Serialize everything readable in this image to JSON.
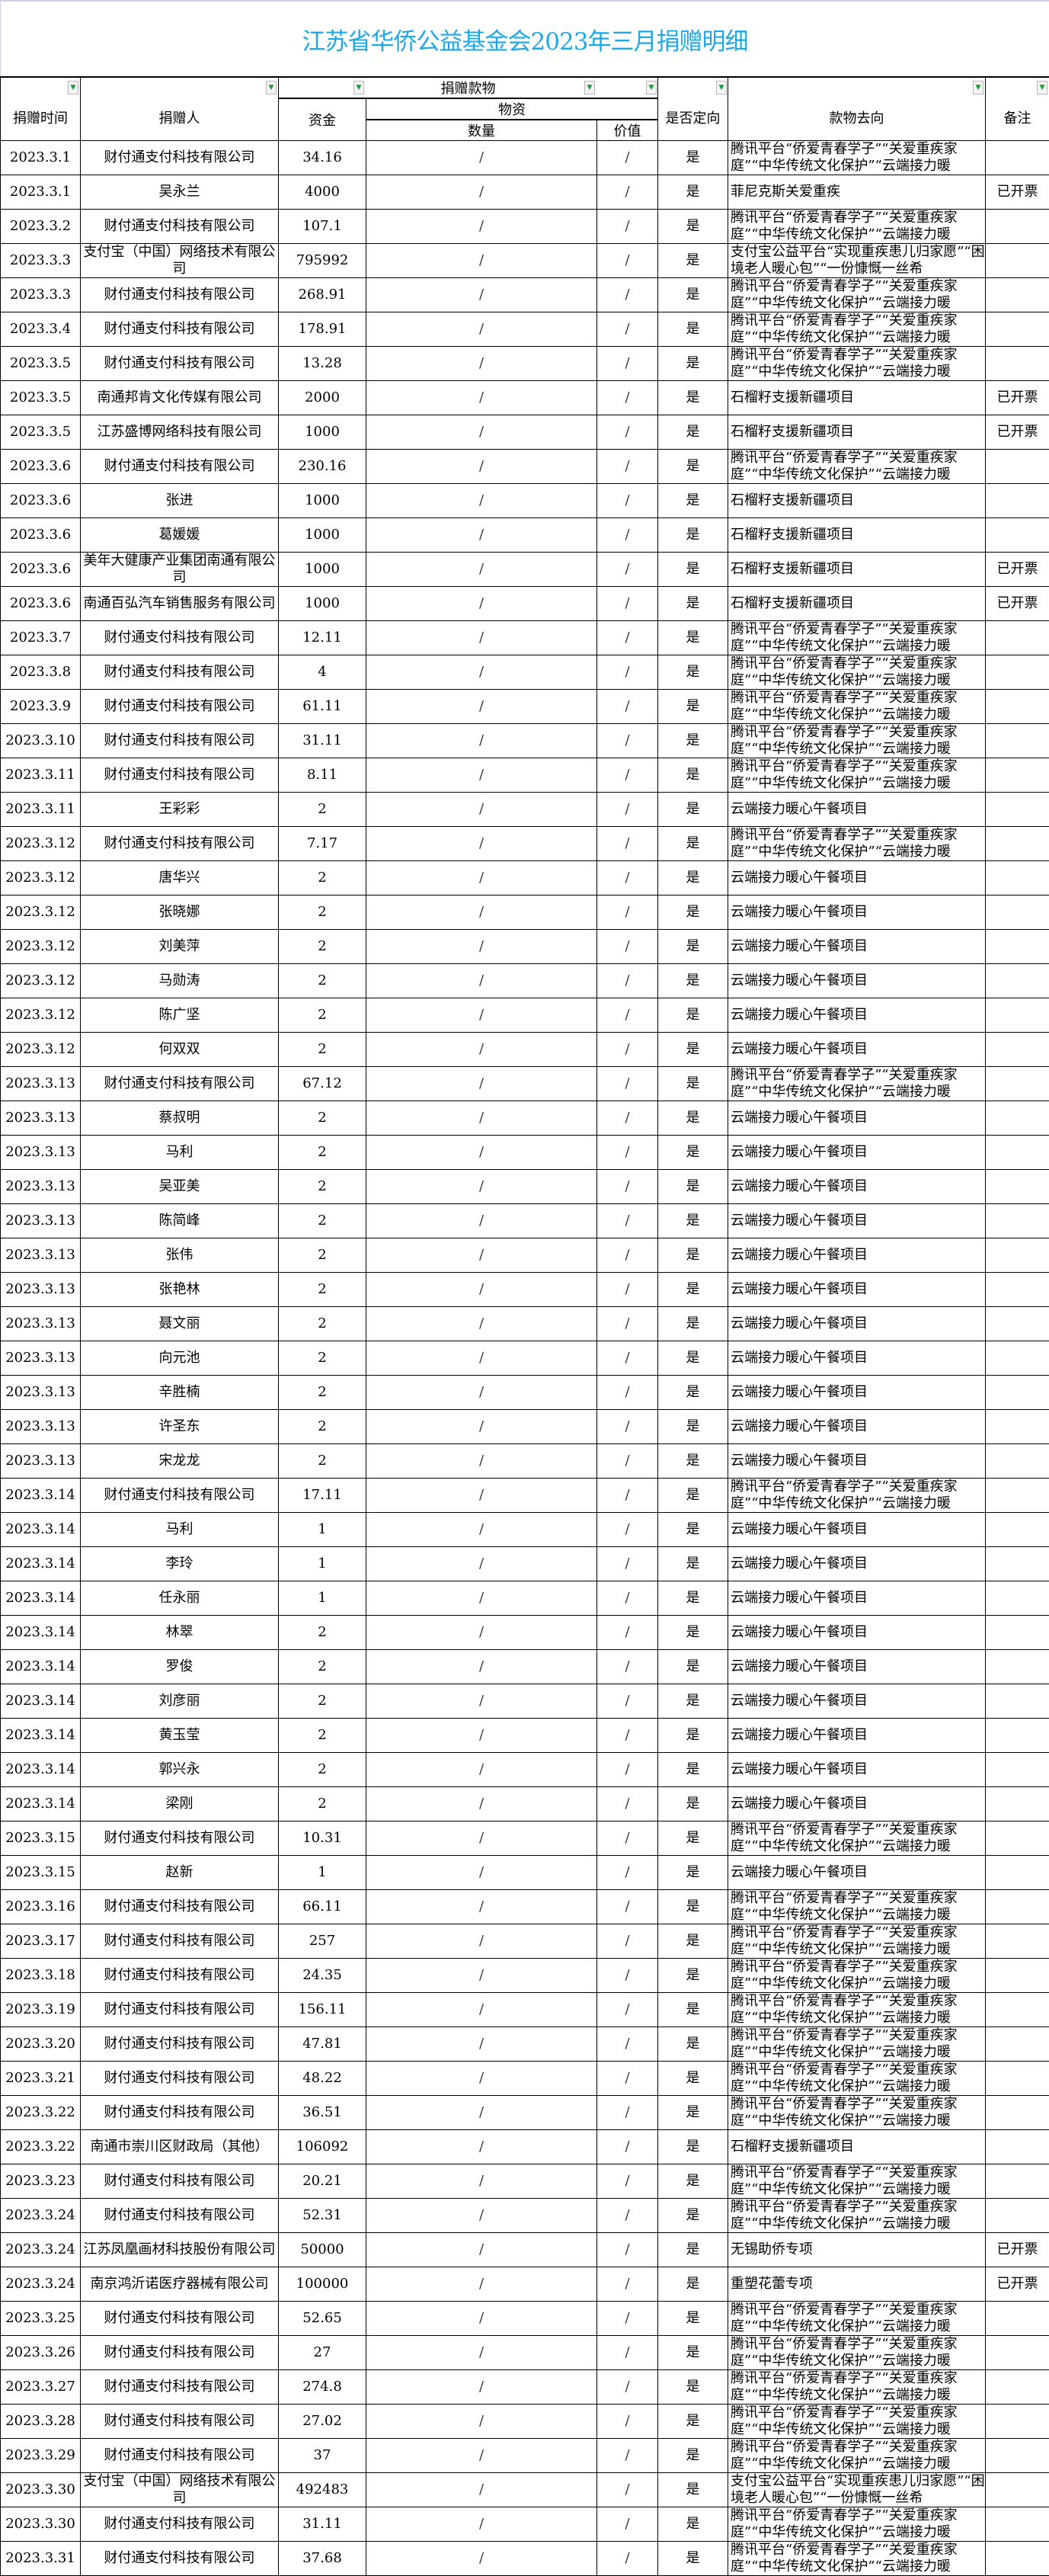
{
  "title": "江苏省华侨公益基金会2023年三月捐赠明细",
  "headers": {
    "date": "捐赠时间",
    "donor": "捐赠人",
    "donation_group": "捐赠款物",
    "funds": "资金",
    "goods": "物资",
    "quantity": "数量",
    "value": "价值",
    "directed": "是否定向",
    "destination": "款物去向",
    "note": "备注"
  },
  "filter_icon": "filter-dropdown-icon",
  "filter_color": "#1b9b3a",
  "title_color": "#1ea9e6",
  "rows": [
    [
      "2023.3.1",
      "财付通支付科技有限公司",
      "34.16",
      "/",
      "/",
      "是",
      "腾讯平台“侨爱青春学子”“关爱重疾家庭”“中华传统文化保护”“云端接力暖",
      ""
    ],
    [
      "2023.3.1",
      "吴永兰",
      "4000",
      "/",
      "/",
      "是",
      "菲尼克斯关爱重疾",
      "已开票"
    ],
    [
      "2023.3.2",
      "财付通支付科技有限公司",
      "107.1",
      "/",
      "/",
      "是",
      "腾讯平台“侨爱青春学子”“关爱重疾家庭”“中华传统文化保护”“云端接力暖",
      ""
    ],
    [
      "2023.3.3",
      "支付宝（中国）网络技术有限公司",
      "795992",
      "/",
      "/",
      "是",
      "支付宝公益平台“实现重疾患儿归家愿”“困境老人暖心包”“一份慷慨一丝希",
      ""
    ],
    [
      "2023.3.3",
      "财付通支付科技有限公司",
      "268.91",
      "/",
      "/",
      "是",
      "腾讯平台“侨爱青春学子”“关爱重疾家庭”“中华传统文化保护”“云端接力暖",
      ""
    ],
    [
      "2023.3.4",
      "财付通支付科技有限公司",
      "178.91",
      "/",
      "/",
      "是",
      "腾讯平台“侨爱青春学子”“关爱重疾家庭”“中华传统文化保护”“云端接力暖",
      ""
    ],
    [
      "2023.3.5",
      "财付通支付科技有限公司",
      "13.28",
      "/",
      "/",
      "是",
      "腾讯平台“侨爱青春学子”“关爱重疾家庭”“中华传统文化保护”“云端接力暖",
      ""
    ],
    [
      "2023.3.5",
      "南通邦肯文化传媒有限公司",
      "2000",
      "/",
      "/",
      "是",
      "石榴籽支援新疆项目",
      "已开票"
    ],
    [
      "2023.3.5",
      "江苏盛博网络科技有限公司",
      "1000",
      "/",
      "/",
      "是",
      "石榴籽支援新疆项目",
      "已开票"
    ],
    [
      "2023.3.6",
      "财付通支付科技有限公司",
      "230.16",
      "/",
      "/",
      "是",
      "腾讯平台“侨爱青春学子”“关爱重疾家庭”“中华传统文化保护”“云端接力暖",
      ""
    ],
    [
      "2023.3.6",
      "张进",
      "1000",
      "/",
      "/",
      "是",
      "石榴籽支援新疆项目",
      ""
    ],
    [
      "2023.3.6",
      "葛媛媛",
      "1000",
      "/",
      "/",
      "是",
      "石榴籽支援新疆项目",
      ""
    ],
    [
      "2023.3.6",
      "美年大健康产业集团南通有限公司",
      "1000",
      "/",
      "/",
      "是",
      "石榴籽支援新疆项目",
      "已开票"
    ],
    [
      "2023.3.6",
      "南通百弘汽车销售服务有限公司",
      "1000",
      "/",
      "/",
      "是",
      "石榴籽支援新疆项目",
      "已开票"
    ],
    [
      "2023.3.7",
      "财付通支付科技有限公司",
      "12.11",
      "/",
      "/",
      "是",
      "腾讯平台“侨爱青春学子”“关爱重疾家庭”“中华传统文化保护”“云端接力暖",
      ""
    ],
    [
      "2023.3.8",
      "财付通支付科技有限公司",
      "4",
      "/",
      "/",
      "是",
      "腾讯平台“侨爱青春学子”“关爱重疾家庭”“中华传统文化保护”“云端接力暖",
      ""
    ],
    [
      "2023.3.9",
      "财付通支付科技有限公司",
      "61.11",
      "/",
      "/",
      "是",
      "腾讯平台“侨爱青春学子”“关爱重疾家庭”“中华传统文化保护”“云端接力暖",
      ""
    ],
    [
      "2023.3.10",
      "财付通支付科技有限公司",
      "31.11",
      "/",
      "/",
      "是",
      "腾讯平台“侨爱青春学子”“关爱重疾家庭”“中华传统文化保护”“云端接力暖",
      ""
    ],
    [
      "2023.3.11",
      "财付通支付科技有限公司",
      "8.11",
      "/",
      "/",
      "是",
      "腾讯平台“侨爱青春学子”“关爱重疾家庭”“中华传统文化保护”“云端接力暖",
      ""
    ],
    [
      "2023.3.11",
      "王彩彩",
      "2",
      "/",
      "/",
      "是",
      "云端接力暖心午餐项目",
      ""
    ],
    [
      "2023.3.12",
      "财付通支付科技有限公司",
      "7.17",
      "/",
      "/",
      "是",
      "腾讯平台“侨爱青春学子”“关爱重疾家庭”“中华传统文化保护”“云端接力暖",
      ""
    ],
    [
      "2023.3.12",
      "唐华兴",
      "2",
      "/",
      "/",
      "是",
      "云端接力暖心午餐项目",
      ""
    ],
    [
      "2023.3.12",
      "张晓娜",
      "2",
      "/",
      "/",
      "是",
      "云端接力暖心午餐项目",
      ""
    ],
    [
      "2023.3.12",
      "刘美萍",
      "2",
      "/",
      "/",
      "是",
      "云端接力暖心午餐项目",
      ""
    ],
    [
      "2023.3.12",
      "马勋涛",
      "2",
      "/",
      "/",
      "是",
      "云端接力暖心午餐项目",
      ""
    ],
    [
      "2023.3.12",
      "陈广坚",
      "2",
      "/",
      "/",
      "是",
      "云端接力暖心午餐项目",
      ""
    ],
    [
      "2023.3.12",
      "何双双",
      "2",
      "/",
      "/",
      "是",
      "云端接力暖心午餐项目",
      ""
    ],
    [
      "2023.3.13",
      "财付通支付科技有限公司",
      "67.12",
      "/",
      "/",
      "是",
      "腾讯平台“侨爱青春学子”“关爱重疾家庭”“中华传统文化保护”“云端接力暖",
      ""
    ],
    [
      "2023.3.13",
      "蔡叔明",
      "2",
      "/",
      "/",
      "是",
      "云端接力暖心午餐项目",
      ""
    ],
    [
      "2023.3.13",
      "马利",
      "2",
      "/",
      "/",
      "是",
      "云端接力暖心午餐项目",
      ""
    ],
    [
      "2023.3.13",
      "吴亚美",
      "2",
      "/",
      "/",
      "是",
      "云端接力暖心午餐项目",
      ""
    ],
    [
      "2023.3.13",
      "陈简峰",
      "2",
      "/",
      "/",
      "是",
      "云端接力暖心午餐项目",
      ""
    ],
    [
      "2023.3.13",
      "张伟",
      "2",
      "/",
      "/",
      "是",
      "云端接力暖心午餐项目",
      ""
    ],
    [
      "2023.3.13",
      "张艳林",
      "2",
      "/",
      "/",
      "是",
      "云端接力暖心午餐项目",
      ""
    ],
    [
      "2023.3.13",
      "聂文丽",
      "2",
      "/",
      "/",
      "是",
      "云端接力暖心午餐项目",
      ""
    ],
    [
      "2023.3.13",
      "向元池",
      "2",
      "/",
      "/",
      "是",
      "云端接力暖心午餐项目",
      ""
    ],
    [
      "2023.3.13",
      "辛胜楠",
      "2",
      "/",
      "/",
      "是",
      "云端接力暖心午餐项目",
      ""
    ],
    [
      "2023.3.13",
      "许圣东",
      "2",
      "/",
      "/",
      "是",
      "云端接力暖心午餐项目",
      ""
    ],
    [
      "2023.3.13",
      "宋龙龙",
      "2",
      "/",
      "/",
      "是",
      "云端接力暖心午餐项目",
      ""
    ],
    [
      "2023.3.14",
      "财付通支付科技有限公司",
      "17.11",
      "/",
      "/",
      "是",
      "腾讯平台“侨爱青春学子”“关爱重疾家庭”“中华传统文化保护”“云端接力暖",
      ""
    ],
    [
      "2023.3.14",
      "马利",
      "1",
      "/",
      "/",
      "是",
      "云端接力暖心午餐项目",
      ""
    ],
    [
      "2023.3.14",
      "李玲",
      "1",
      "/",
      "/",
      "是",
      "云端接力暖心午餐项目",
      ""
    ],
    [
      "2023.3.14",
      "任永丽",
      "1",
      "/",
      "/",
      "是",
      "云端接力暖心午餐项目",
      ""
    ],
    [
      "2023.3.14",
      "林翠",
      "2",
      "/",
      "/",
      "是",
      "云端接力暖心午餐项目",
      ""
    ],
    [
      "2023.3.14",
      "罗俊",
      "2",
      "/",
      "/",
      "是",
      "云端接力暖心午餐项目",
      ""
    ],
    [
      "2023.3.14",
      "刘彦丽",
      "2",
      "/",
      "/",
      "是",
      "云端接力暖心午餐项目",
      ""
    ],
    [
      "2023.3.14",
      "黄玉莹",
      "2",
      "/",
      "/",
      "是",
      "云端接力暖心午餐项目",
      ""
    ],
    [
      "2023.3.14",
      "郭兴永",
      "2",
      "/",
      "/",
      "是",
      "云端接力暖心午餐项目",
      ""
    ],
    [
      "2023.3.14",
      "梁刚",
      "2",
      "/",
      "/",
      "是",
      "云端接力暖心午餐项目",
      ""
    ],
    [
      "2023.3.15",
      "财付通支付科技有限公司",
      "10.31",
      "/",
      "/",
      "是",
      "腾讯平台“侨爱青春学子”“关爱重疾家庭”“中华传统文化保护”“云端接力暖",
      ""
    ],
    [
      "2023.3.15",
      "赵新",
      "1",
      "/",
      "/",
      "是",
      "云端接力暖心午餐项目",
      ""
    ],
    [
      "2023.3.16",
      "财付通支付科技有限公司",
      "66.11",
      "/",
      "/",
      "是",
      "腾讯平台“侨爱青春学子”“关爱重疾家庭”“中华传统文化保护”“云端接力暖",
      ""
    ],
    [
      "2023.3.17",
      "财付通支付科技有限公司",
      "257",
      "/",
      "/",
      "是",
      "腾讯平台“侨爱青春学子”“关爱重疾家庭”“中华传统文化保护”“云端接力暖",
      ""
    ],
    [
      "2023.3.18",
      "财付通支付科技有限公司",
      "24.35",
      "/",
      "/",
      "是",
      "腾讯平台“侨爱青春学子”“关爱重疾家庭”“中华传统文化保护”“云端接力暖",
      ""
    ],
    [
      "2023.3.19",
      "财付通支付科技有限公司",
      "156.11",
      "/",
      "/",
      "是",
      "腾讯平台“侨爱青春学子”“关爱重疾家庭”“中华传统文化保护”“云端接力暖",
      ""
    ],
    [
      "2023.3.20",
      "财付通支付科技有限公司",
      "47.81",
      "/",
      "/",
      "是",
      "腾讯平台“侨爱青春学子”“关爱重疾家庭”“中华传统文化保护”“云端接力暖",
      ""
    ],
    [
      "2023.3.21",
      "财付通支付科技有限公司",
      "48.22",
      "/",
      "/",
      "是",
      "腾讯平台“侨爱青春学子”“关爱重疾家庭”“中华传统文化保护”“云端接力暖",
      ""
    ],
    [
      "2023.3.22",
      "财付通支付科技有限公司",
      "36.51",
      "/",
      "/",
      "是",
      "腾讯平台“侨爱青春学子”“关爱重疾家庭”“中华传统文化保护”“云端接力暖",
      ""
    ],
    [
      "2023.3.22",
      "南通市崇川区财政局（其他）",
      "106092",
      "/",
      "/",
      "是",
      "石榴籽支援新疆项目",
      ""
    ],
    [
      "2023.3.23",
      "财付通支付科技有限公司",
      "20.21",
      "/",
      "/",
      "是",
      "腾讯平台“侨爱青春学子”“关爱重疾家庭”“中华传统文化保护”“云端接力暖",
      ""
    ],
    [
      "2023.3.24",
      "财付通支付科技有限公司",
      "52.31",
      "/",
      "/",
      "是",
      "腾讯平台“侨爱青春学子”“关爱重疾家庭”“中华传统文化保护”“云端接力暖",
      ""
    ],
    [
      "2023.3.24",
      "江苏凤凰画材科技股份有限公司",
      "50000",
      "/",
      "/",
      "是",
      "无锡助侨专项",
      "已开票"
    ],
    [
      "2023.3.24",
      "南京鸿沂诺医疗器械有限公司",
      "100000",
      "/",
      "/",
      "是",
      "重塑花蕾专项",
      "已开票"
    ],
    [
      "2023.3.25",
      "财付通支付科技有限公司",
      "52.65",
      "/",
      "/",
      "是",
      "腾讯平台“侨爱青春学子”“关爱重疾家庭”“中华传统文化保护”“云端接力暖",
      ""
    ],
    [
      "2023.3.26",
      "财付通支付科技有限公司",
      "27",
      "/",
      "/",
      "是",
      "腾讯平台“侨爱青春学子”“关爱重疾家庭”“中华传统文化保护”“云端接力暖",
      ""
    ],
    [
      "2023.3.27",
      "财付通支付科技有限公司",
      "274.8",
      "/",
      "/",
      "是",
      "腾讯平台“侨爱青春学子”“关爱重疾家庭”“中华传统文化保护”“云端接力暖",
      ""
    ],
    [
      "2023.3.28",
      "财付通支付科技有限公司",
      "27.02",
      "/",
      "/",
      "是",
      "腾讯平台“侨爱青春学子”“关爱重疾家庭”“中华传统文化保护”“云端接力暖",
      ""
    ],
    [
      "2023.3.29",
      "财付通支付科技有限公司",
      "37",
      "/",
      "/",
      "是",
      "腾讯平台“侨爱青春学子”“关爱重疾家庭”“中华传统文化保护”“云端接力暖",
      ""
    ],
    [
      "2023.3.30",
      "支付宝（中国）网络技术有限公司",
      "492483",
      "/",
      "/",
      "是",
      "支付宝公益平台“实现重疾患儿归家愿”“困境老人暖心包”“一份慷慨一丝希",
      ""
    ],
    [
      "2023.3.30",
      "财付通支付科技有限公司",
      "31.11",
      "/",
      "/",
      "是",
      "腾讯平台“侨爱青春学子”“关爱重疾家庭”“中华传统文化保护”“云端接力暖",
      ""
    ],
    [
      "2023.3.31",
      "财付通支付科技有限公司",
      "37.68",
      "/",
      "/",
      "是",
      "腾讯平台“侨爱青春学子”“关爱重疾家庭”“中华传统文化保护”“云端接力暖",
      ""
    ]
  ]
}
